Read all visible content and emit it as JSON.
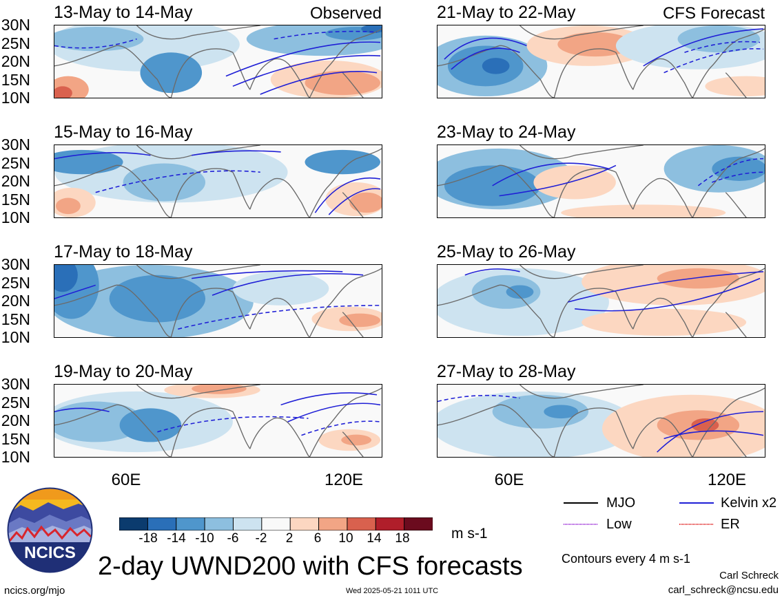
{
  "observed_label": "Observed",
  "forecast_label": "CFS Forecast",
  "left_panels": [
    {
      "title": "13-May to 14-May"
    },
    {
      "title": "15-May to 16-May"
    },
    {
      "title": "17-May to 18-May"
    },
    {
      "title": "19-May to 20-May"
    }
  ],
  "right_panels": [
    {
      "title": "21-May to 22-May"
    },
    {
      "title": "23-May to 24-May"
    },
    {
      "title": "25-May to 26-May"
    },
    {
      "title": "27-May to 28-May"
    }
  ],
  "lat_labels": [
    "30N",
    "25N",
    "20N",
    "15N",
    "10N"
  ],
  "lon_labels": [
    "60E",
    "120E"
  ],
  "colorbar": {
    "labels": [
      "-18",
      "-14",
      "-10",
      "-6",
      "-2",
      "2",
      "6",
      "10",
      "14",
      "18"
    ],
    "colors": [
      "#0b3b6e",
      "#2a6fb8",
      "#4f96cc",
      "#8dbfdf",
      "#cde3f0",
      "#f9f9f9",
      "#fcd7c1",
      "#f2a585",
      "#d9614e",
      "#b01e2a",
      "#6b0b1e"
    ],
    "units": "m s-1"
  },
  "main_title": "2-day UWND200 with CFS forecasts",
  "legend": {
    "mjo": "MJO",
    "kelvin": "Kelvin x2",
    "low": "Low",
    "er": "ER",
    "mjo_color": "#000000",
    "kelvin_color": "#1f1fd6",
    "low_color": "#9a2bd6",
    "er_color": "#e02020"
  },
  "contour_note": "Contours every 4 m s-1",
  "author": "Carl Schreck",
  "email": "carl_schreck@ncsu.edu",
  "site": "ncics.org/mjo",
  "timestamp": "Wed 2025-05-21 1011 UTC",
  "logo_text": "NCICS"
}
